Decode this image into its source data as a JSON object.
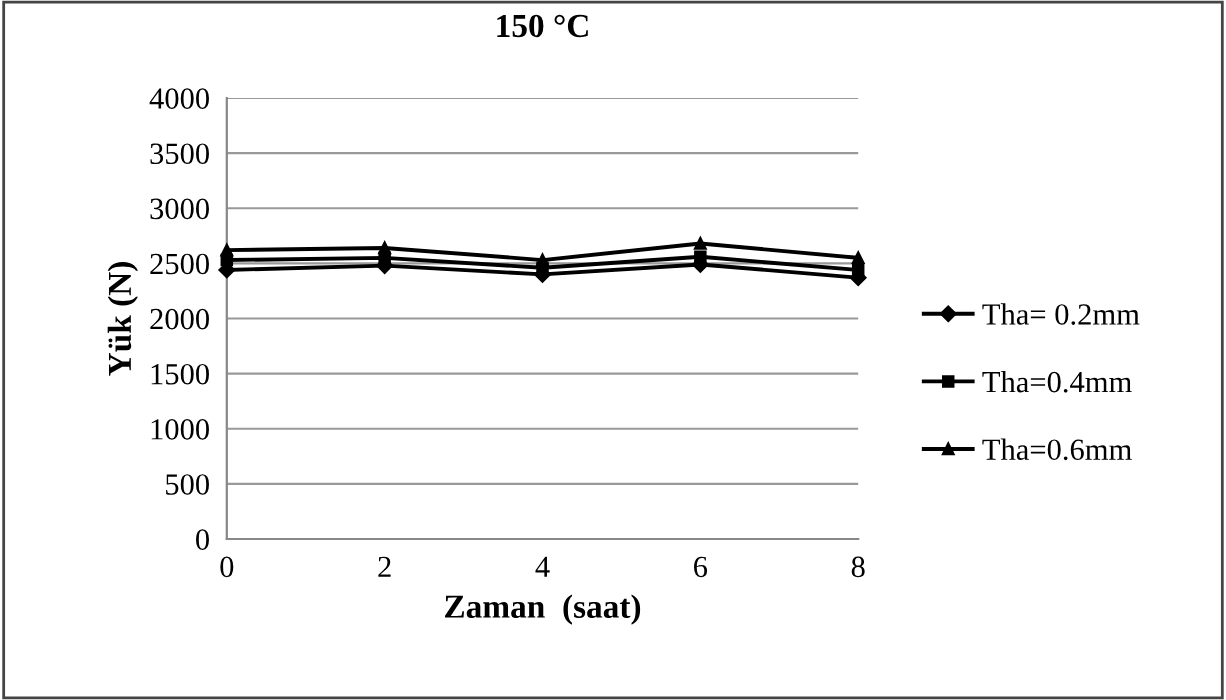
{
  "chart_data": {
    "type": "line",
    "title": "150 °C",
    "xlabel": "Zaman  (saat)",
    "ylabel": "Yük (N)",
    "x": [
      0,
      2,
      4,
      6,
      8
    ],
    "series": [
      {
        "name": "Tha= 0.2mm",
        "color": "#000000",
        "marker": "diamond",
        "values": [
          2440,
          2480,
          2400,
          2490,
          2370
        ]
      },
      {
        "name": "Tha=0.4mm",
        "color": "#000000",
        "marker": "square",
        "values": [
          2530,
          2550,
          2460,
          2560,
          2440
        ]
      },
      {
        "name": "Tha=0.6mm",
        "color": "#000000",
        "marker": "triangle",
        "values": [
          2620,
          2640,
          2530,
          2680,
          2550
        ]
      }
    ],
    "xlim": [
      0,
      8
    ],
    "xticks": [
      0,
      2,
      4,
      6,
      8
    ],
    "ylim": [
      0,
      4000
    ],
    "yticks": [
      0,
      500,
      1000,
      1500,
      2000,
      2500,
      3000,
      3500,
      4000
    ],
    "grid": "y",
    "legend": "right",
    "line_style": "solid"
  }
}
